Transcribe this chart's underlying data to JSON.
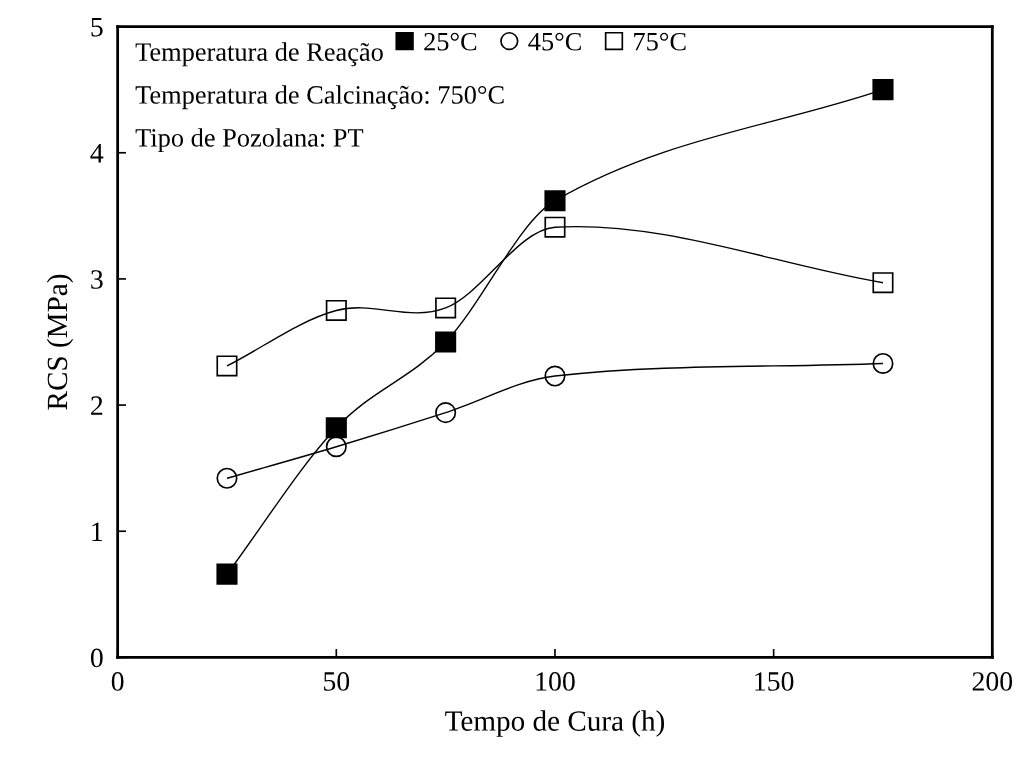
{
  "chart_data": {
    "type": "line",
    "xlabel": "Tempo de Cura (h)",
    "ylabel": "RCS (MPa)",
    "legend_title": "Temperatura de Reação",
    "annotations": [
      "Temperatura de Calcinação: 750°C",
      "Tipo de Pozolana: PT"
    ],
    "x": [
      25,
      50,
      75,
      100,
      175
    ],
    "series": [
      {
        "name": "25°C",
        "color": "#000000",
        "marker": "square",
        "values": [
          0.66,
          1.82,
          2.5,
          3.62,
          4.5
        ]
      },
      {
        "name": "45°C",
        "color": "#000000",
        "marker": "circle",
        "values": [
          1.42,
          1.67,
          1.94,
          2.23,
          2.33
        ]
      },
      {
        "name": "75°C",
        "color": "#000000",
        "marker": "square",
        "values": [
          2.31,
          2.75,
          2.77,
          3.41,
          2.97
        ]
      }
    ],
    "xlim": [
      0,
      200
    ],
    "xticks": [
      0,
      50,
      100,
      150,
      200
    ],
    "ylim": [
      0,
      5
    ],
    "yticks": [
      0,
      1,
      2,
      3,
      4,
      5
    ],
    "grid": false,
    "legend": "top left",
    "line_style": "solid"
  }
}
